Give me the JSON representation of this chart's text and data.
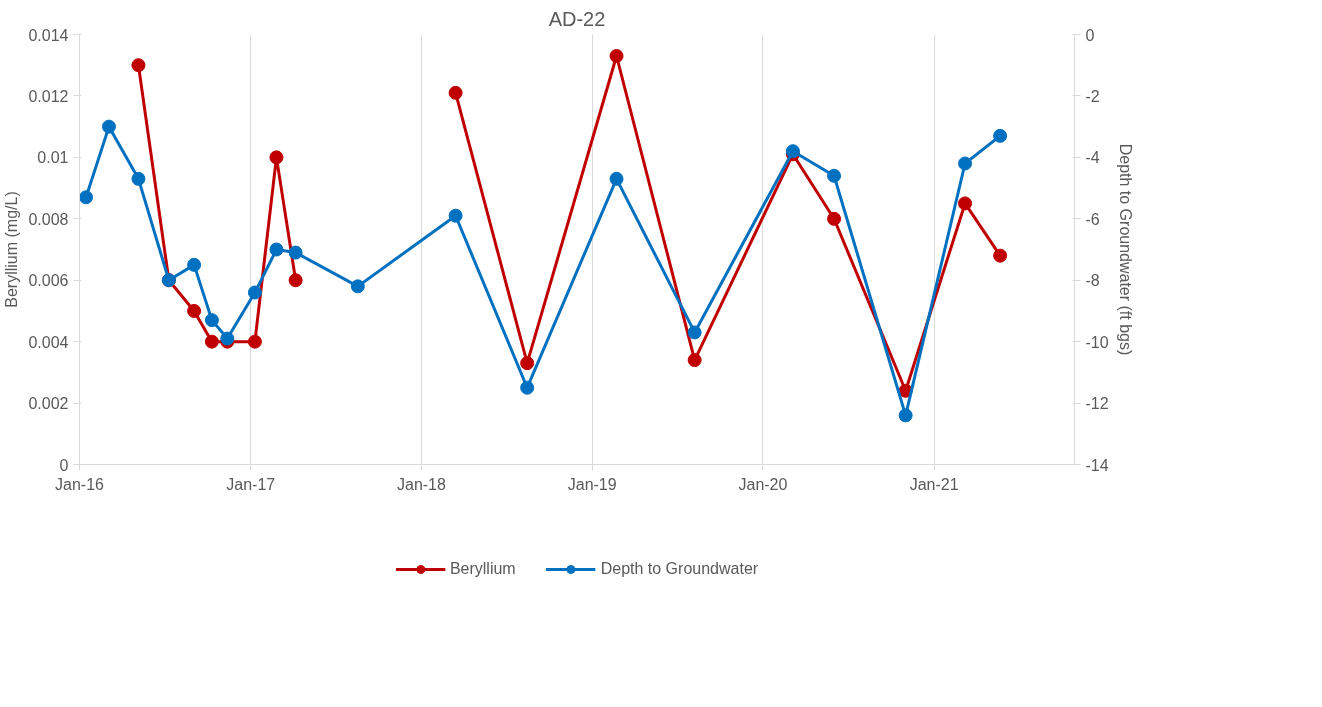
{
  "chart_data": {
    "type": "line",
    "title": "AD-22",
    "ylabel": "Beryllium (mg/L)",
    "y2label": "Depth to Groundwater (ft bgs)",
    "x": [
      "2016-01-15",
      "2016-03-04",
      "2016-05-06",
      "2016-07-10",
      "2016-09-02",
      "2016-10-10",
      "2016-11-12",
      "2017-01-10",
      "2017-02-25",
      "2017-04-07",
      "2017-08-18",
      "2018-03-15",
      "2018-08-15",
      "2019-02-22",
      "2019-08-08",
      "2020-03-05",
      "2020-06-01",
      "2020-11-01",
      "2021-03-08",
      "2021-05-22"
    ],
    "series": [
      {
        "name": "Beryllium",
        "color": "#c00000",
        "values": [
          null,
          null,
          0.013,
          0.006,
          0.005,
          0.004,
          0.004,
          0.004,
          0.01,
          0.006,
          null,
          0.0121,
          0.0033,
          0.0133,
          0.0034,
          0.0101,
          0.008,
          0.0024,
          0.0085,
          0.0068
        ]
      },
      {
        "name": "Depth to Groundwater",
        "color": "#0070c0",
        "axis": "y2",
        "values": [
          -5.3,
          -3.0,
          -4.7,
          -8.0,
          -7.5,
          -9.3,
          -9.9,
          -8.4,
          -7.0,
          -7.1,
          -8.2,
          -5.9,
          -11.5,
          -4.7,
          -9.7,
          -3.8,
          -4.6,
          -12.4,
          -4.2,
          -3.3
        ]
      }
    ],
    "xlim": [
      "2016-01-01",
      "2021-10-28"
    ],
    "xticks": [
      {
        "value": "2016-01-01",
        "label": "Jan-16"
      },
      {
        "value": "2017-01-01",
        "label": "Jan-17"
      },
      {
        "value": "2018-01-01",
        "label": "Jan-18"
      },
      {
        "value": "2019-01-01",
        "label": "Jan-19"
      },
      {
        "value": "2020-01-01",
        "label": "Jan-20"
      },
      {
        "value": "2021-01-01",
        "label": "Jan-21"
      }
    ],
    "ylim": [
      0,
      0.014
    ],
    "yticks": [
      0,
      0.002,
      0.004,
      0.006,
      0.008,
      0.01,
      0.012,
      0.014
    ],
    "y2lim": [
      -14,
      0
    ],
    "y2ticks": [
      -14,
      -12,
      -10,
      -8,
      -6,
      -4,
      -2,
      0
    ],
    "grid": "x",
    "legend": "bottom",
    "marker": "circle",
    "line_style": "solid"
  }
}
